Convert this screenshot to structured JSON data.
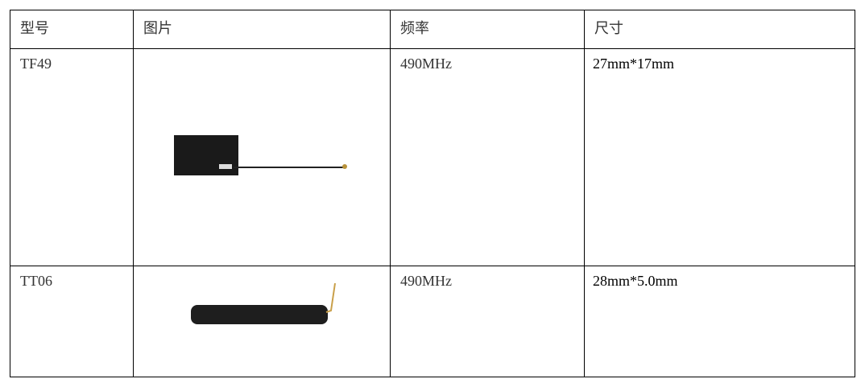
{
  "table": {
    "header": [
      "型号",
      "图片",
      "频率",
      "尺寸"
    ],
    "rows": [
      {
        "model": "TF49",
        "frequency": "490MHz",
        "size": "27mm*17mm"
      },
      {
        "model": "TT06",
        "frequency": "490MHz",
        "size": "28mm*5.0mm"
      }
    ]
  }
}
